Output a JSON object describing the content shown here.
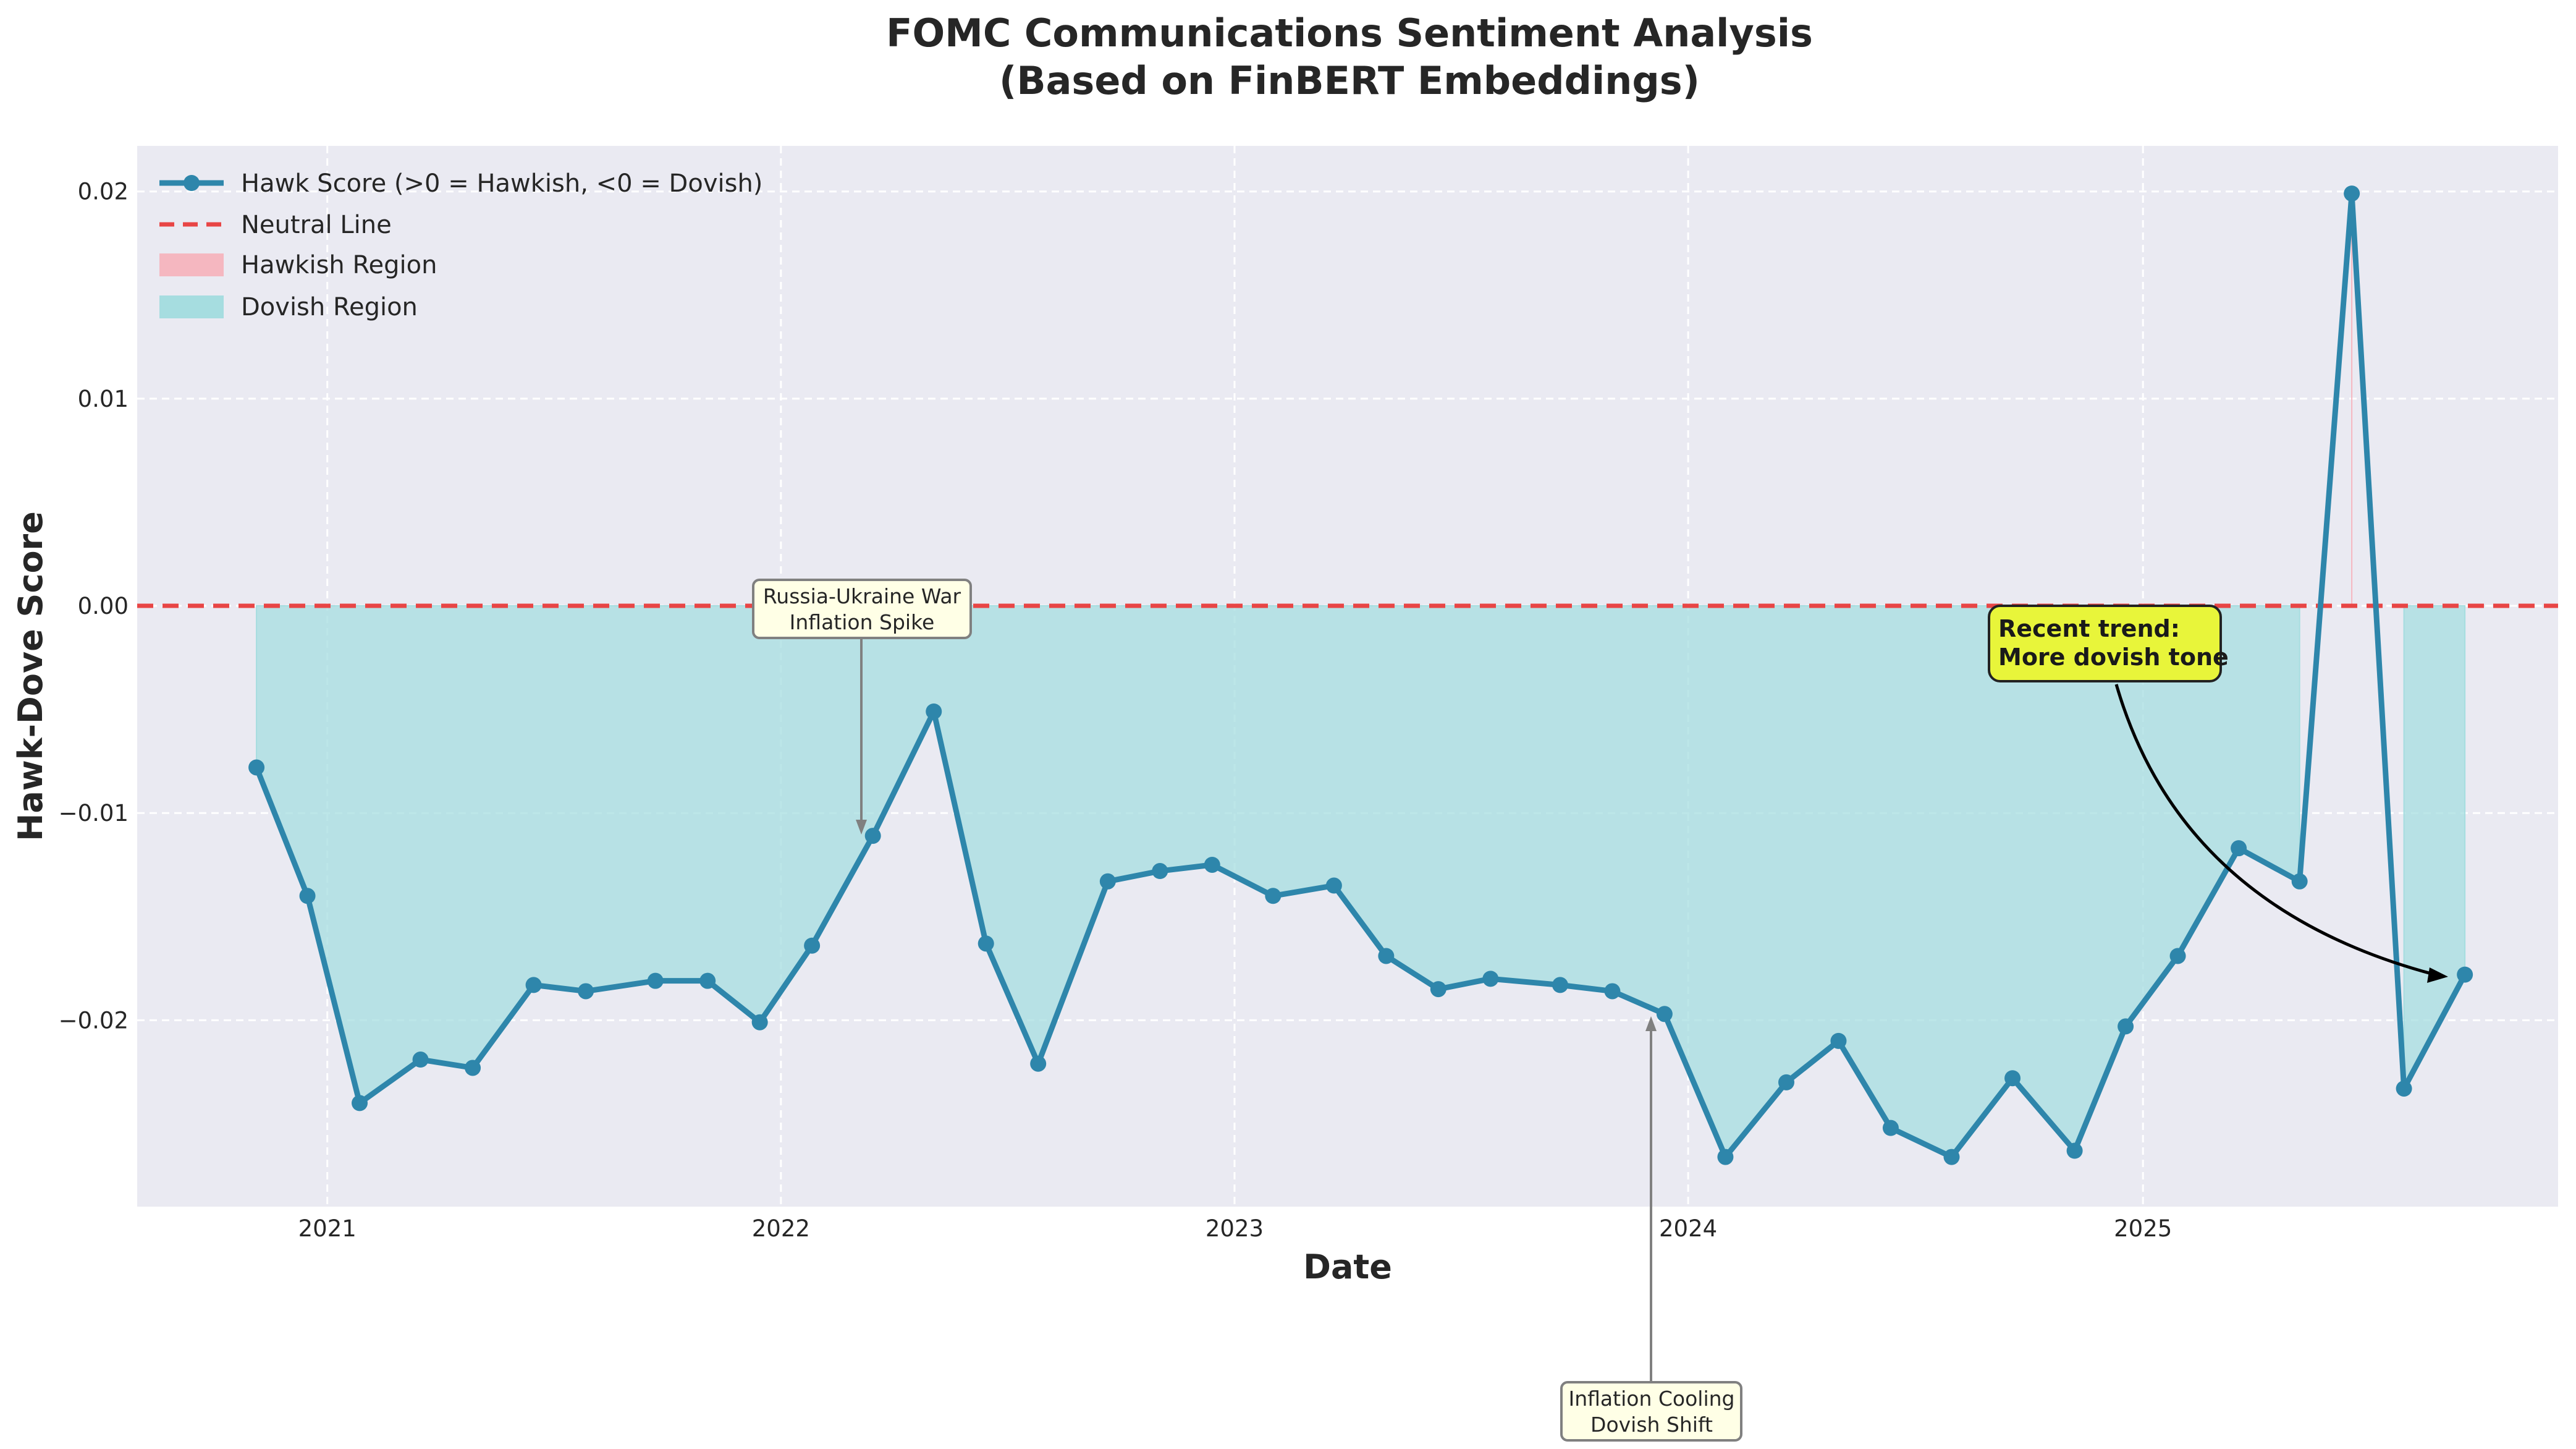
{
  "colors": {
    "plot_bg": "#EAEAF2",
    "grid": "#FFFFFF",
    "line": "#2E86AB",
    "neutral": "#E84545",
    "hawkish_fill": "#F5B7C0",
    "dovish_fill": "#A6DDE0",
    "ann_box": "#FFFFE6",
    "trend_box": "#E8F53A"
  },
  "chart_data": {
    "type": "line",
    "title_line1": "FOMC Communications Sentiment Analysis",
    "title_line2": "(Based on FinBERT Embeddings)",
    "xlabel": "Date",
    "ylabel": "Hawk-Dove Score",
    "x_ticks": [
      "2021",
      "2022",
      "2023",
      "2024",
      "2025"
    ],
    "y_ticks": [
      "0.02",
      "0.01",
      "0.00",
      "−0.01",
      "−0.02"
    ],
    "y_tick_values": [
      0.02,
      0.01,
      0.0,
      -0.01,
      -0.02
    ],
    "xlim": [
      "2020-08-01",
      "2025-12-01"
    ],
    "ylim": [
      -0.029,
      0.0222
    ],
    "grid": true,
    "legend_position": "upper-left",
    "legend": {
      "line": "Hawk Score (>0 = Hawkish, <0 = Dovish)",
      "neutral": "Neutral Line",
      "hawkish": "Hawkish Region",
      "dovish": "Dovish Region"
    },
    "series": [
      {
        "name": "Hawk Score (>0 = Hawkish, <0 = Dovish)",
        "x": [
          "2020-11-05",
          "2020-12-16",
          "2021-01-27",
          "2021-03-17",
          "2021-04-28",
          "2021-06-16",
          "2021-07-28",
          "2021-09-22",
          "2021-11-03",
          "2021-12-15",
          "2022-01-26",
          "2022-03-16",
          "2022-05-04",
          "2022-06-15",
          "2022-07-27",
          "2022-09-21",
          "2022-11-02",
          "2022-12-14",
          "2023-02-01",
          "2023-03-22",
          "2023-05-03",
          "2023-06-14",
          "2023-07-26",
          "2023-09-20",
          "2023-11-01",
          "2023-12-13",
          "2024-01-31",
          "2024-03-20",
          "2024-05-01",
          "2024-06-12",
          "2024-07-31",
          "2024-09-18",
          "2024-11-07",
          "2024-12-18",
          "2025-01-29",
          "2025-03-19",
          "2025-05-07",
          "2025-06-18",
          "2025-07-30",
          "2025-09-17"
        ],
        "values": [
          -0.0078,
          -0.014,
          -0.024,
          -0.0219,
          -0.0223,
          -0.0183,
          -0.0186,
          -0.0181,
          -0.0181,
          -0.0201,
          -0.0164,
          -0.0111,
          -0.0051,
          -0.0163,
          -0.0221,
          -0.0133,
          -0.0128,
          -0.0125,
          -0.014,
          -0.0135,
          -0.0169,
          -0.0185,
          -0.018,
          -0.0183,
          -0.0186,
          -0.0197,
          -0.0266,
          -0.023,
          -0.021,
          -0.0252,
          -0.0266,
          -0.0228,
          -0.0263,
          -0.0203,
          -0.0169,
          -0.0117,
          -0.0133,
          0.0199,
          -0.0233,
          -0.0178
        ]
      }
    ],
    "neutral_line": 0.0,
    "annotations": [
      {
        "id": "russia",
        "line1": "Russia-Ukraine War",
        "line2": "Inflation Spike",
        "x": "2022-03-16",
        "y": -0.0111
      },
      {
        "id": "cooling",
        "line1": "Inflation Cooling",
        "line2": "Dovish Shift",
        "x": "2023-12-13",
        "y": -0.0197
      },
      {
        "id": "trend",
        "line1": "Recent trend:",
        "line2": "More dovish tone",
        "x": "2025-09-17",
        "y": -0.0178
      }
    ]
  }
}
